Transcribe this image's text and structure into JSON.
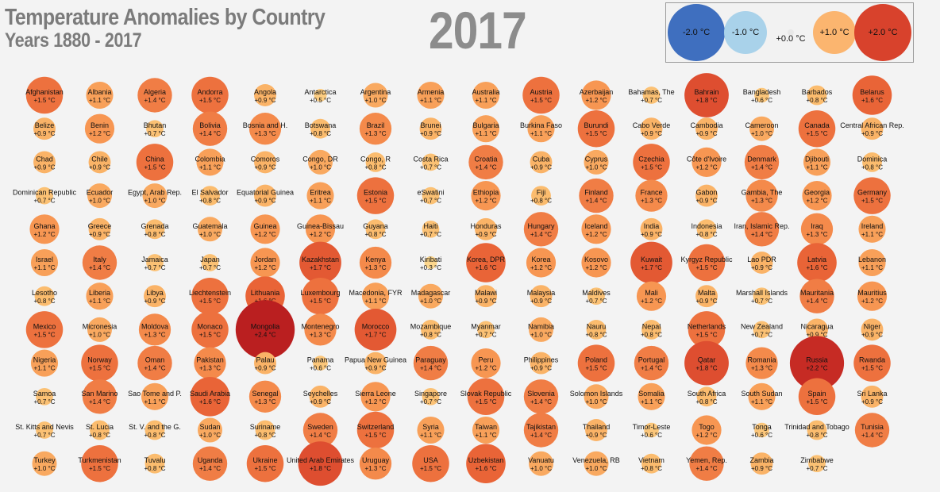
{
  "header": {
    "title": "Temperature Anomalies by Country",
    "subtitle": "Years 1880 - 2017",
    "year": "2017"
  },
  "legend": {
    "items": [
      {
        "label": "-2.0 °C",
        "value": -2.0,
        "color": "#3f6fbf"
      },
      {
        "label": "-1.0 °C",
        "value": -1.0,
        "color": "#a9d2ea"
      },
      {
        "label": "+0.0 °C",
        "value": 0.0,
        "color": "#f2f2f2"
      },
      {
        "label": "+1.0 °C",
        "value": 1.0,
        "color": "#fbb56f"
      },
      {
        "label": "+2.0 °C",
        "value": 2.0,
        "color": "#d8422c"
      }
    ]
  },
  "chart_data": {
    "type": "bubble-grid",
    "title": "Temperature Anomalies by Country",
    "subtitle": "Years 1880 - 2017",
    "year": "2017",
    "unit": "°C",
    "columns": 16,
    "countries": [
      {
        "name": "Afghanistan",
        "label": "+1.5 °C",
        "value": 1.5
      },
      {
        "name": "Albania",
        "label": "+1.1 °C",
        "value": 1.1
      },
      {
        "name": "Algeria",
        "label": "+1.4 °C",
        "value": 1.4
      },
      {
        "name": "Andorra",
        "label": "+1.5 °C",
        "value": 1.5
      },
      {
        "name": "Angola",
        "label": "+0.9 °C",
        "value": 0.9
      },
      {
        "name": "Antarctica",
        "label": "+0.5 °C",
        "value": 0.5
      },
      {
        "name": "Argentina",
        "label": "+1.0 °C",
        "value": 1.0
      },
      {
        "name": "Armenia",
        "label": "+1.1 °C",
        "value": 1.1
      },
      {
        "name": "Australia",
        "label": "+1.1 °C",
        "value": 1.1
      },
      {
        "name": "Austria",
        "label": "+1.5 °C",
        "value": 1.5
      },
      {
        "name": "Azerbaijan",
        "label": "+1.2 °C",
        "value": 1.2
      },
      {
        "name": "Bahamas, The",
        "label": "+0.7 °C",
        "value": 0.7
      },
      {
        "name": "Bahrain",
        "label": "+1.8 °C",
        "value": 1.8
      },
      {
        "name": "Bangladesh",
        "label": "+0.6 °C",
        "value": 0.6
      },
      {
        "name": "Barbados",
        "label": "+0.8 °C",
        "value": 0.8
      },
      {
        "name": "Belarus",
        "label": "+1.6 °C",
        "value": 1.6
      },
      {
        "name": "Belize",
        "label": "+0.9 °C",
        "value": 0.9
      },
      {
        "name": "Benin",
        "label": "+1.2 °C",
        "value": 1.2
      },
      {
        "name": "Bhutan",
        "label": "+0.7 °C",
        "value": 0.7
      },
      {
        "name": "Bolivia",
        "label": "+1.4 °C",
        "value": 1.4
      },
      {
        "name": "Bosnia and H.",
        "label": "+1.3 °C",
        "value": 1.3
      },
      {
        "name": "Botswana",
        "label": "+0.8 °C",
        "value": 0.8
      },
      {
        "name": "Brazil",
        "label": "+1.3 °C",
        "value": 1.3
      },
      {
        "name": "Brunei",
        "label": "+0.9 °C",
        "value": 0.9
      },
      {
        "name": "Bulgaria",
        "label": "+1.1 °C",
        "value": 1.1
      },
      {
        "name": "Burkina Faso",
        "label": "+1.1 °C",
        "value": 1.1
      },
      {
        "name": "Burundi",
        "label": "+1.5 °C",
        "value": 1.5
      },
      {
        "name": "Cabo Verde",
        "label": "+0.9 °C",
        "value": 0.9
      },
      {
        "name": "Cambodia",
        "label": "+0.9 °C",
        "value": 0.9
      },
      {
        "name": "Cameroon",
        "label": "+1.0 °C",
        "value": 1.0
      },
      {
        "name": "Canada",
        "label": "+1.5 °C",
        "value": 1.5
      },
      {
        "name": "Central African Rep.",
        "label": "+0.9 °C",
        "value": 0.9
      },
      {
        "name": "Chad",
        "label": "+0.9 °C",
        "value": 0.9
      },
      {
        "name": "Chile",
        "label": "+0.9 °C",
        "value": 0.9
      },
      {
        "name": "China",
        "label": "+1.5 °C",
        "value": 1.5
      },
      {
        "name": "Colombia",
        "label": "+1.1 °C",
        "value": 1.1
      },
      {
        "name": "Comoros",
        "label": "+0.9 °C",
        "value": 0.9
      },
      {
        "name": "Congo, DR",
        "label": "+1.0 °C",
        "value": 1.0
      },
      {
        "name": "Congo, R",
        "label": "+0.8 °C",
        "value": 0.8
      },
      {
        "name": "Costa Rica",
        "label": "+0.7 °C",
        "value": 0.7
      },
      {
        "name": "Croatia",
        "label": "+1.4 °C",
        "value": 1.4
      },
      {
        "name": "Cuba",
        "label": "+0.9 °C",
        "value": 0.9
      },
      {
        "name": "Cyprus",
        "label": "+1.0 °C",
        "value": 1.0
      },
      {
        "name": "Czechia",
        "label": "+1.5 °C",
        "value": 1.5
      },
      {
        "name": "Côte d'Ivoire",
        "label": "+1.2 °C",
        "value": 1.2
      },
      {
        "name": "Denmark",
        "label": "+1.4 °C",
        "value": 1.4
      },
      {
        "name": "Djibouti",
        "label": "+1.1 °C",
        "value": 1.1
      },
      {
        "name": "Dominica",
        "label": "+0.8 °C",
        "value": 0.8
      },
      {
        "name": "Dominican Republic",
        "label": "+0.7 °C",
        "value": 0.7
      },
      {
        "name": "Ecuador",
        "label": "+1.0 °C",
        "value": 1.0
      },
      {
        "name": "Egypt, Arab Rep.",
        "label": "+1.0 °C",
        "value": 1.0
      },
      {
        "name": "El Salvador",
        "label": "+0.8 °C",
        "value": 0.8
      },
      {
        "name": "Equatorial Guinea",
        "label": "+0.9 °C",
        "value": 0.9
      },
      {
        "name": "Eritrea",
        "label": "+1.1 °C",
        "value": 1.1
      },
      {
        "name": "Estonia",
        "label": "+1.5 °C",
        "value": 1.5
      },
      {
        "name": "eSwatini",
        "label": "+0.7 °C",
        "value": 0.7
      },
      {
        "name": "Ethiopia",
        "label": "+1.2 °C",
        "value": 1.2
      },
      {
        "name": "Fiji",
        "label": "+0.8 °C",
        "value": 0.8
      },
      {
        "name": "Finland",
        "label": "+1.4 °C",
        "value": 1.4
      },
      {
        "name": "France",
        "label": "+1.3 °C",
        "value": 1.3
      },
      {
        "name": "Gabon",
        "label": "+0.9 °C",
        "value": 0.9
      },
      {
        "name": "Gambia, The",
        "label": "+1.3 °C",
        "value": 1.3
      },
      {
        "name": "Georgia",
        "label": "+1.2 °C",
        "value": 1.2
      },
      {
        "name": "Germany",
        "label": "+1.5 °C",
        "value": 1.5
      },
      {
        "name": "Ghana",
        "label": "+1.2 °C",
        "value": 1.2
      },
      {
        "name": "Greece",
        "label": "+0.9 °C",
        "value": 0.9
      },
      {
        "name": "Grenada",
        "label": "+0.8 °C",
        "value": 0.8
      },
      {
        "name": "Guatemala",
        "label": "+1.0 °C",
        "value": 1.0
      },
      {
        "name": "Guinea",
        "label": "+1.2 °C",
        "value": 1.2
      },
      {
        "name": "Guinea-Bissau",
        "label": "+1.2 °C",
        "value": 1.2
      },
      {
        "name": "Guyana",
        "label": "+0.8 °C",
        "value": 0.8
      },
      {
        "name": "Haiti",
        "label": "+0.7 °C",
        "value": 0.7
      },
      {
        "name": "Honduras",
        "label": "+0.9 °C",
        "value": 0.9
      },
      {
        "name": "Hungary",
        "label": "+1.4 °C",
        "value": 1.4
      },
      {
        "name": "Iceland",
        "label": "+1.2 °C",
        "value": 1.2
      },
      {
        "name": "India",
        "label": "+0.9 °C",
        "value": 0.9
      },
      {
        "name": "Indonesia",
        "label": "+0.8 °C",
        "value": 0.8
      },
      {
        "name": "Iran, Islamic Rep.",
        "label": "+1.4 °C",
        "value": 1.4
      },
      {
        "name": "Iraq",
        "label": "+1.3 °C",
        "value": 1.3
      },
      {
        "name": "Ireland",
        "label": "+1.1 °C",
        "value": 1.1
      },
      {
        "name": "Israel",
        "label": "+1.1 °C",
        "value": 1.1
      },
      {
        "name": "Italy",
        "label": "+1.4 °C",
        "value": 1.4
      },
      {
        "name": "Jamaica",
        "label": "+0.7 °C",
        "value": 0.7
      },
      {
        "name": "Japan",
        "label": "+0.7 °C",
        "value": 0.7
      },
      {
        "name": "Jordan",
        "label": "+1.2 °C",
        "value": 1.2
      },
      {
        "name": "Kazakhstan",
        "label": "+1.7 °C",
        "value": 1.7
      },
      {
        "name": "Kenya",
        "label": "+1.3 °C",
        "value": 1.3
      },
      {
        "name": "Kiribati",
        "label": "+0.3 °C",
        "value": 0.3
      },
      {
        "name": "Korea, DPR",
        "label": "+1.6 °C",
        "value": 1.6
      },
      {
        "name": "Korea",
        "label": "+1.2 °C",
        "value": 1.2
      },
      {
        "name": "Kosovo",
        "label": "+1.2 °C",
        "value": 1.2
      },
      {
        "name": "Kuwait",
        "label": "+1.7 °C",
        "value": 1.7
      },
      {
        "name": "Kyrgyz Republic",
        "label": "+1.5 °C",
        "value": 1.5
      },
      {
        "name": "Lao PDR",
        "label": "+0.9 °C",
        "value": 0.9
      },
      {
        "name": "Latvia",
        "label": "+1.6 °C",
        "value": 1.6
      },
      {
        "name": "Lebanon",
        "label": "+1.1 °C",
        "value": 1.1
      },
      {
        "name": "Lesotho",
        "label": "+0.8 °C",
        "value": 0.8
      },
      {
        "name": "Liberia",
        "label": "+1.1 °C",
        "value": 1.1
      },
      {
        "name": "Libya",
        "label": "+0.9 °C",
        "value": 0.9
      },
      {
        "name": "Liechtenstein",
        "label": "+1.5 °C",
        "value": 1.5
      },
      {
        "name": "Lithuania",
        "label": "+1.6 °C",
        "value": 1.6
      },
      {
        "name": "Luxembourg",
        "label": "+1.5 °C",
        "value": 1.5
      },
      {
        "name": "Macedonia, FYR",
        "label": "+1.1 °C",
        "value": 1.1
      },
      {
        "name": "Madagascar",
        "label": "+1.0 °C",
        "value": 1.0
      },
      {
        "name": "Malawi",
        "label": "+0.9 °C",
        "value": 0.9
      },
      {
        "name": "Malaysia",
        "label": "+0.9 °C",
        "value": 0.9
      },
      {
        "name": "Maldives",
        "label": "+0.7 °C",
        "value": 0.7
      },
      {
        "name": "Mali",
        "label": "+1.2 °C",
        "value": 1.2
      },
      {
        "name": "Malta",
        "label": "+0.9 °C",
        "value": 0.9
      },
      {
        "name": "Marshall Islands",
        "label": "+0.7 °C",
        "value": 0.7
      },
      {
        "name": "Mauritania",
        "label": "+1.4 °C",
        "value": 1.4
      },
      {
        "name": "Mauritius",
        "label": "+1.2 °C",
        "value": 1.2
      },
      {
        "name": "Mexico",
        "label": "+1.5 °C",
        "value": 1.5
      },
      {
        "name": "Micronesia",
        "label": "+1.0 °C",
        "value": 1.0
      },
      {
        "name": "Moldova",
        "label": "+1.3 °C",
        "value": 1.3
      },
      {
        "name": "Monaco",
        "label": "+1.5 °C",
        "value": 1.5
      },
      {
        "name": "Mongolia",
        "label": "+2.4 °C",
        "value": 2.4
      },
      {
        "name": "Montenegro",
        "label": "+1.3 °C",
        "value": 1.3
      },
      {
        "name": "Morocco",
        "label": "+1.7 °C",
        "value": 1.7
      },
      {
        "name": "Mozambique",
        "label": "+0.8 °C",
        "value": 0.8
      },
      {
        "name": "Myanmar",
        "label": "+0.7 °C",
        "value": 0.7
      },
      {
        "name": "Namibia",
        "label": "+1.0 °C",
        "value": 1.0
      },
      {
        "name": "Nauru",
        "label": "+0.8 °C",
        "value": 0.8
      },
      {
        "name": "Nepal",
        "label": "+0.8 °C",
        "value": 0.8
      },
      {
        "name": "Netherlands",
        "label": "+1.5 °C",
        "value": 1.5
      },
      {
        "name": "New Zealand",
        "label": "+0.7 °C",
        "value": 0.7
      },
      {
        "name": "Nicaragua",
        "label": "+0.9 °C",
        "value": 0.9
      },
      {
        "name": "Niger",
        "label": "+0.9 °C",
        "value": 0.9
      },
      {
        "name": "Nigeria",
        "label": "+1.1 °C",
        "value": 1.1
      },
      {
        "name": "Norway",
        "label": "+1.5 °C",
        "value": 1.5
      },
      {
        "name": "Oman",
        "label": "+1.4 °C",
        "value": 1.4
      },
      {
        "name": "Pakistan",
        "label": "+1.3 °C",
        "value": 1.3
      },
      {
        "name": "Palau",
        "label": "+0.9 °C",
        "value": 0.9
      },
      {
        "name": "Panama",
        "label": "+0.6 °C",
        "value": 0.6
      },
      {
        "name": "Papua New Guinea",
        "label": "+0.9 °C",
        "value": 0.9
      },
      {
        "name": "Paraguay",
        "label": "+1.4 °C",
        "value": 1.4
      },
      {
        "name": "Peru",
        "label": "+1.2 °C",
        "value": 1.2
      },
      {
        "name": "Philippines",
        "label": "+0.9 °C",
        "value": 0.9
      },
      {
        "name": "Poland",
        "label": "+1.5 °C",
        "value": 1.5
      },
      {
        "name": "Portugal",
        "label": "+1.4 °C",
        "value": 1.4
      },
      {
        "name": "Qatar",
        "label": "+1.8 °C",
        "value": 1.8
      },
      {
        "name": "Romania",
        "label": "+1.3 °C",
        "value": 1.3
      },
      {
        "name": "Russia",
        "label": "+2.2 °C",
        "value": 2.2
      },
      {
        "name": "Rwanda",
        "label": "+1.5 °C",
        "value": 1.5
      },
      {
        "name": "Samoa",
        "label": "+0.7 °C",
        "value": 0.7
      },
      {
        "name": "San Marino",
        "label": "+1.4 °C",
        "value": 1.4
      },
      {
        "name": "Sao Tome and P.",
        "label": "+1.1 °C",
        "value": 1.1
      },
      {
        "name": "Saudi Arabia",
        "label": "+1.6 °C",
        "value": 1.6
      },
      {
        "name": "Senegal",
        "label": "+1.3 °C",
        "value": 1.3
      },
      {
        "name": "Seychelles",
        "label": "+0.9 °C",
        "value": 0.9
      },
      {
        "name": "Sierra Leone",
        "label": "+1.2 °C",
        "value": 1.2
      },
      {
        "name": "Singapore",
        "label": "+0.7 °C",
        "value": 0.7
      },
      {
        "name": "Slovak Republic",
        "label": "+1.5 °C",
        "value": 1.5
      },
      {
        "name": "Slovenia",
        "label": "+1.4 °C",
        "value": 1.4
      },
      {
        "name": "Solomon Islands",
        "label": "+1.0 °C",
        "value": 1.0
      },
      {
        "name": "Somalia",
        "label": "+1.1 °C",
        "value": 1.1
      },
      {
        "name": "South Africa",
        "label": "+0.8 °C",
        "value": 0.8
      },
      {
        "name": "South Sudan",
        "label": "+1.1 °C",
        "value": 1.1
      },
      {
        "name": "Spain",
        "label": "+1.5 °C",
        "value": 1.5
      },
      {
        "name": "Sri Lanka",
        "label": "+0.9 °C",
        "value": 0.9
      },
      {
        "name": "St. Kitts and Nevis",
        "label": "+0.7 °C",
        "value": 0.7
      },
      {
        "name": "St. Lucia",
        "label": "+0.8 °C",
        "value": 0.8
      },
      {
        "name": "St. V. and the G.",
        "label": "+0.8 °C",
        "value": 0.8
      },
      {
        "name": "Sudan",
        "label": "+1.0 °C",
        "value": 1.0
      },
      {
        "name": "Suriname",
        "label": "+0.8 °C",
        "value": 0.8
      },
      {
        "name": "Sweden",
        "label": "+1.4 °C",
        "value": 1.4
      },
      {
        "name": "Switzerland",
        "label": "+1.5 °C",
        "value": 1.5
      },
      {
        "name": "Syria",
        "label": "+1.1 °C",
        "value": 1.1
      },
      {
        "name": "Taiwan",
        "label": "+1.1 °C",
        "value": 1.1
      },
      {
        "name": "Tajikistan",
        "label": "+1.4 °C",
        "value": 1.4
      },
      {
        "name": "Thailand",
        "label": "+0.9 °C",
        "value": 0.9
      },
      {
        "name": "Timor-Leste",
        "label": "+0.6 °C",
        "value": 0.6
      },
      {
        "name": "Togo",
        "label": "+1.2 °C",
        "value": 1.2
      },
      {
        "name": "Tonga",
        "label": "+0.6 °C",
        "value": 0.6
      },
      {
        "name": "Trinidad and Tobago",
        "label": "+0.8 °C",
        "value": 0.8
      },
      {
        "name": "Tunisia",
        "label": "+1.4 °C",
        "value": 1.4
      },
      {
        "name": "Turkey",
        "label": "+1.0 °C",
        "value": 1.0
      },
      {
        "name": "Turkmenistan",
        "label": "+1.5 °C",
        "value": 1.5
      },
      {
        "name": "Tuvalu",
        "label": "+0.8 °C",
        "value": 0.8
      },
      {
        "name": "Uganda",
        "label": "+1.4 °C",
        "value": 1.4
      },
      {
        "name": "Ukraine",
        "label": "+1.5 °C",
        "value": 1.5
      },
      {
        "name": "United Arab Emirates",
        "label": "+1.8 °C",
        "value": 1.8
      },
      {
        "name": "Uruguay",
        "label": "+1.3 °C",
        "value": 1.3
      },
      {
        "name": "USA",
        "label": "+1.5 °C",
        "value": 1.5
      },
      {
        "name": "Uzbekistan",
        "label": "+1.6 °C",
        "value": 1.6
      },
      {
        "name": "Vanuatu",
        "label": "+1.0 °C",
        "value": 1.0
      },
      {
        "name": "Venezuela, RB",
        "label": "+1.0 °C",
        "value": 1.0
      },
      {
        "name": "Vietnam",
        "label": "+0.8 °C",
        "value": 0.8
      },
      {
        "name": "Yemen, Rep.",
        "label": "+1.4 °C",
        "value": 1.4
      },
      {
        "name": "Zambia",
        "label": "+0.9 °C",
        "value": 0.9
      },
      {
        "name": "Zimbabwe",
        "label": "+0.7 °C",
        "value": 0.7
      }
    ]
  }
}
